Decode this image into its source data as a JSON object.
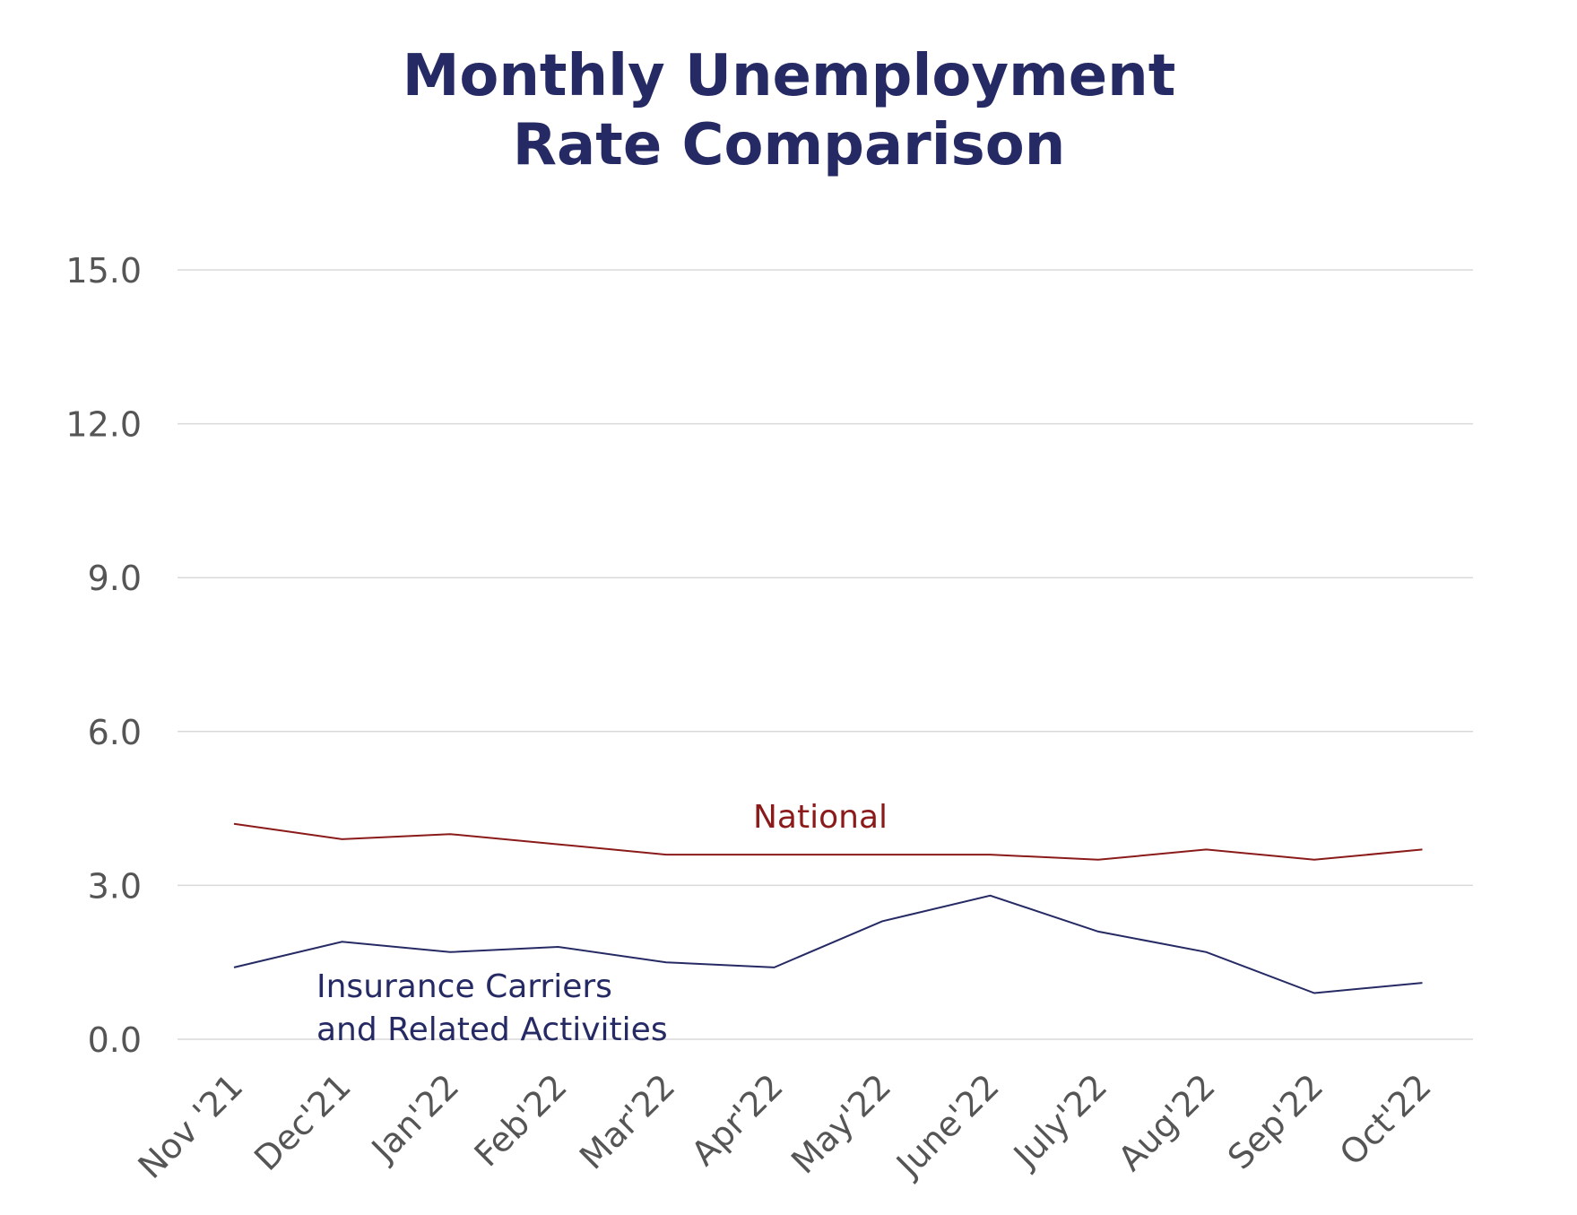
{
  "chart_data": {
    "type": "line",
    "title": [
      "Monthly Unemployment",
      "Rate Comparison"
    ],
    "categories": [
      "Nov '21",
      "Dec'21",
      "Jan'22",
      "Feb'22",
      "Mar'22",
      "Apr'22",
      "May'22",
      "June'22",
      "July'22",
      "Aug'22",
      "Sep'22",
      "Oct'22"
    ],
    "series": [
      {
        "name": "National",
        "label_lines": [
          "National"
        ],
        "color": "#8b1a1a",
        "values": [
          4.2,
          3.9,
          4.0,
          3.8,
          3.6,
          3.6,
          3.6,
          3.6,
          3.5,
          3.7,
          3.5,
          3.7
        ]
      },
      {
        "name": "Insurance Carriers and Related Activities",
        "label_lines": [
          "Insurance Carriers",
          "and Related Activities"
        ],
        "color": "#262a64",
        "values": [
          1.4,
          1.9,
          1.7,
          1.8,
          1.5,
          1.4,
          2.3,
          2.8,
          2.1,
          1.7,
          0.9,
          1.1
        ]
      }
    ],
    "yticks": [
      "0.0",
      "3.0",
      "6.0",
      "9.0",
      "12.0",
      "15.0"
    ],
    "ylim": [
      0,
      15
    ],
    "grid": true,
    "legend": "inline labels"
  }
}
